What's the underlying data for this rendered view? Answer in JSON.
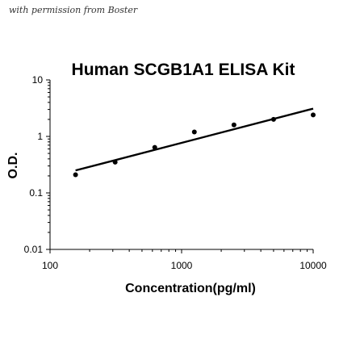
{
  "watermark": "with permission from Boster",
  "chart_data": {
    "type": "scatter",
    "title": "Human SCGB1A1 ELISA Kit",
    "xlabel": "Concentration(pg/ml)",
    "ylabel": "O.D.",
    "x_scale": "log",
    "y_scale": "log",
    "xlim": [
      100,
      10000
    ],
    "ylim": [
      0.01,
      10
    ],
    "x_ticks": [
      100,
      1000,
      10000
    ],
    "x_tick_labels": [
      "100",
      "1000",
      "10000"
    ],
    "y_ticks": [
      0.01,
      0.1,
      1,
      10
    ],
    "y_tick_labels": [
      "0.01",
      "0.1",
      "1",
      "10"
    ],
    "grid": false,
    "legend": "none",
    "points": [
      {
        "x": 156.25,
        "y": 0.21
      },
      {
        "x": 312.5,
        "y": 0.35
      },
      {
        "x": 625,
        "y": 0.64
      },
      {
        "x": 1250,
        "y": 1.2
      },
      {
        "x": 2500,
        "y": 1.6
      },
      {
        "x": 5000,
        "y": 2.0
      },
      {
        "x": 10000,
        "y": 2.4
      }
    ],
    "fit_line": [
      {
        "x": 156.25,
        "y": 0.25
      },
      {
        "x": 10000,
        "y": 3.1
      }
    ]
  }
}
